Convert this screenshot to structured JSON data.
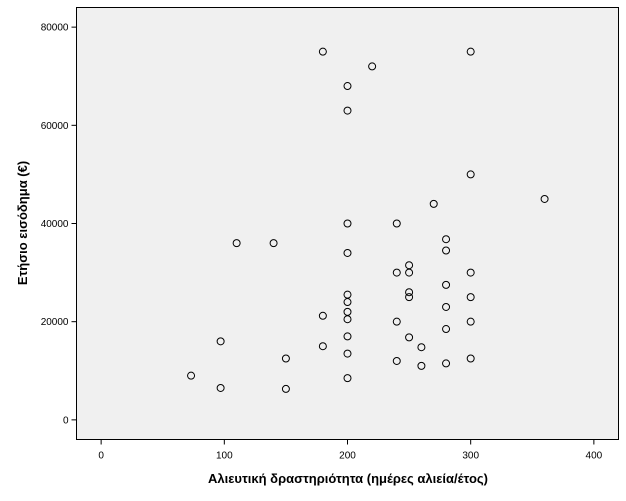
{
  "chart_data": {
    "type": "scatter",
    "title": "",
    "xlabel": "Αλιευτική δραστηριότητα (ημέρες αλιεία/έτος)",
    "ylabel": "Ετήσιο εισόδημα (€)",
    "xlim": [
      -20,
      420
    ],
    "ylim": [
      -4000,
      84000
    ],
    "xticks": [
      0,
      100,
      200,
      300,
      400
    ],
    "yticks": [
      0,
      20000,
      40000,
      60000,
      80000
    ],
    "xtick_labels": [
      "0",
      "100",
      "200",
      "300",
      "400"
    ],
    "ytick_labels": [
      "0",
      "20000",
      "40000",
      "60000",
      "80000"
    ],
    "grid": false,
    "marker": "open-circle",
    "background_color": "#f0f0f0",
    "point_color": "#000000",
    "points": [
      {
        "x": 180,
        "y": 75000
      },
      {
        "x": 300,
        "y": 75000
      },
      {
        "x": 220,
        "y": 72000
      },
      {
        "x": 200,
        "y": 68000
      },
      {
        "x": 200,
        "y": 63000
      },
      {
        "x": 300,
        "y": 50000
      },
      {
        "x": 360,
        "y": 45000
      },
      {
        "x": 270,
        "y": 44000
      },
      {
        "x": 200,
        "y": 40000
      },
      {
        "x": 240,
        "y": 40000
      },
      {
        "x": 280,
        "y": 36800
      },
      {
        "x": 110,
        "y": 36000
      },
      {
        "x": 140,
        "y": 36000
      },
      {
        "x": 280,
        "y": 34500
      },
      {
        "x": 200,
        "y": 34000
      },
      {
        "x": 250,
        "y": 31500
      },
      {
        "x": 240,
        "y": 30000
      },
      {
        "x": 250,
        "y": 30000
      },
      {
        "x": 300,
        "y": 30000
      },
      {
        "x": 280,
        "y": 27500
      },
      {
        "x": 250,
        "y": 26000
      },
      {
        "x": 200,
        "y": 25500
      },
      {
        "x": 250,
        "y": 25000
      },
      {
        "x": 300,
        "y": 25000
      },
      {
        "x": 200,
        "y": 24000
      },
      {
        "x": 280,
        "y": 23000
      },
      {
        "x": 200,
        "y": 22000
      },
      {
        "x": 180,
        "y": 21200
      },
      {
        "x": 200,
        "y": 20500
      },
      {
        "x": 240,
        "y": 20000
      },
      {
        "x": 300,
        "y": 20000
      },
      {
        "x": 280,
        "y": 18500
      },
      {
        "x": 200,
        "y": 17000
      },
      {
        "x": 250,
        "y": 16800
      },
      {
        "x": 97,
        "y": 16000
      },
      {
        "x": 180,
        "y": 15000
      },
      {
        "x": 260,
        "y": 14800
      },
      {
        "x": 200,
        "y": 13500
      },
      {
        "x": 150,
        "y": 12500
      },
      {
        "x": 300,
        "y": 12500
      },
      {
        "x": 240,
        "y": 12000
      },
      {
        "x": 280,
        "y": 11500
      },
      {
        "x": 260,
        "y": 11000
      },
      {
        "x": 73,
        "y": 9000
      },
      {
        "x": 200,
        "y": 8500
      },
      {
        "x": 97,
        "y": 6500
      },
      {
        "x": 150,
        "y": 6300
      }
    ]
  }
}
